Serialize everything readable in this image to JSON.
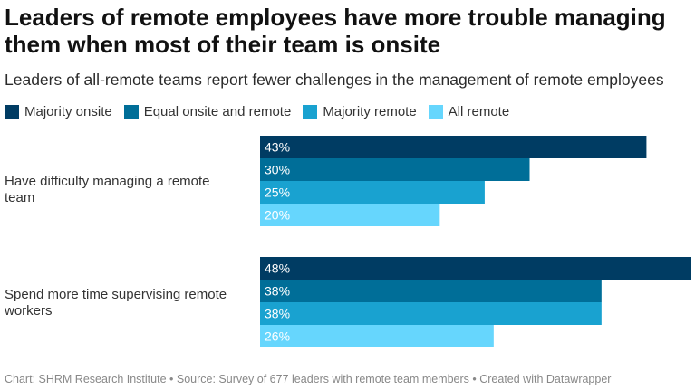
{
  "title": "Leaders of remote employees have more trouble managing them when most of their team is onsite",
  "subtitle": "Leaders of all-remote teams report fewer challenges in the management of remote employees",
  "footer": "Chart: SHRM Research Institute • Source: Survey of 677 leaders with remote team members • Created with Datawrapper",
  "colors": {
    "majority_onsite": "#003c63",
    "equal": "#006e98",
    "majority_remote": "#19a2d0",
    "all_remote": "#66d6fd"
  },
  "chart_data": {
    "type": "bar",
    "orientation": "horizontal",
    "categories": [
      "Have difficulty managing a remote team",
      "Spend more time supervising remote workers"
    ],
    "series": [
      {
        "name": "Majority onsite",
        "color": "#003c63",
        "values": [
          43,
          48
        ]
      },
      {
        "name": "Equal onsite and remote",
        "color": "#006e98",
        "values": [
          30,
          38
        ]
      },
      {
        "name": "Majority remote",
        "color": "#19a2d0",
        "values": [
          25,
          38
        ]
      },
      {
        "name": "All remote",
        "color": "#66d6fd",
        "values": [
          20,
          26
        ]
      }
    ],
    "value_suffix": "%",
    "xlim": [
      0,
      48
    ],
    "grid": false,
    "legend_position": "top-left"
  }
}
